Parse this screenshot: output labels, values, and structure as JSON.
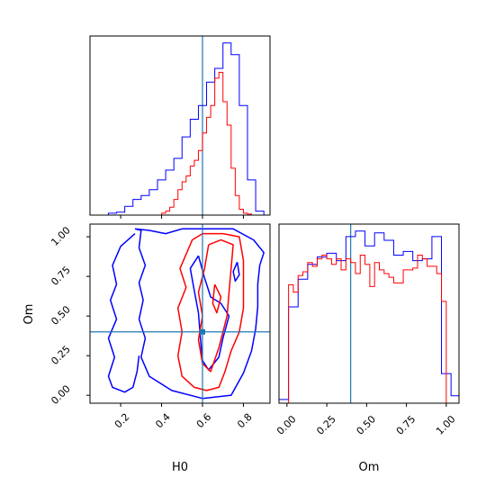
{
  "chart_data": [
    {
      "type": "histogram",
      "panel": "H0-marginal",
      "xlim": [
        0.05,
        0.93
      ],
      "truth_line": 0.6,
      "grid": false,
      "x_tick_values": [
        0.2,
        0.4,
        0.6,
        0.8
      ],
      "series": [
        {
          "color": "#0000ff",
          "bin_edges": [
            0.14,
            0.18,
            0.22,
            0.26,
            0.3,
            0.34,
            0.38,
            0.42,
            0.46,
            0.5,
            0.54,
            0.58,
            0.62,
            0.66,
            0.7,
            0.74,
            0.78,
            0.82,
            0.86,
            0.9
          ],
          "counts": [
            0.01,
            0.015,
            0.045,
            0.08,
            0.1,
            0.13,
            0.18,
            0.23,
            0.29,
            0.4,
            0.49,
            0.56,
            0.68,
            0.75,
            0.88,
            0.82,
            0.56,
            0.18,
            0.02
          ]
        },
        {
          "color": "#ff0000",
          "bin_edges": [
            0.4,
            0.42,
            0.44,
            0.46,
            0.48,
            0.5,
            0.52,
            0.54,
            0.56,
            0.58,
            0.6,
            0.62,
            0.64,
            0.66,
            0.68,
            0.7,
            0.72,
            0.74,
            0.76,
            0.78,
            0.8,
            0.82,
            0.84
          ],
          "counts": [
            0.01,
            0.02,
            0.04,
            0.08,
            0.13,
            0.17,
            0.2,
            0.25,
            0.28,
            0.33,
            0.42,
            0.5,
            0.56,
            0.7,
            0.73,
            0.58,
            0.46,
            0.24,
            0.1,
            0.03,
            0.01,
            0.005
          ]
        }
      ]
    },
    {
      "type": "contour",
      "panel": "H0-Om-joint",
      "xlabel": "H0",
      "ylabel": "Om",
      "xlim": [
        0.05,
        0.93
      ],
      "ylim": [
        -0.05,
        1.08
      ],
      "truth_x": 0.6,
      "truth_y": 0.4,
      "grid": false,
      "x_tick_labels": [
        "0.2",
        "0.4",
        "0.6",
        "0.8"
      ],
      "x_tick_values": [
        0.2,
        0.4,
        0.6,
        0.8
      ],
      "y_tick_labels": [
        "0.00",
        "0.25",
        "0.50",
        "0.75",
        "1.00"
      ],
      "y_tick_values": [
        0.0,
        0.25,
        0.5,
        0.75,
        1.0
      ],
      "series": [
        {
          "color": "#0000ff",
          "contours": [
            [
              [
                0.27,
                1.05
              ],
              [
                0.3,
                1.04
              ],
              [
                0.29,
                0.93
              ],
              [
                0.32,
                0.82
              ],
              [
                0.29,
                0.71
              ],
              [
                0.31,
                0.6
              ],
              [
                0.29,
                0.48
              ],
              [
                0.32,
                0.36
              ],
              [
                0.3,
                0.24
              ],
              [
                0.34,
                0.12
              ],
              [
                0.45,
                0.03
              ],
              [
                0.6,
                -0.02
              ],
              [
                0.74,
                0.0
              ],
              [
                0.8,
                0.14
              ],
              [
                0.84,
                0.28
              ],
              [
                0.86,
                0.42
              ],
              [
                0.87,
                0.56
              ],
              [
                0.87,
                0.7
              ],
              [
                0.88,
                0.82
              ],
              [
                0.9,
                0.9
              ],
              [
                0.85,
                0.98
              ],
              [
                0.75,
                1.05
              ],
              [
                0.62,
                1.05
              ],
              [
                0.5,
                1.05
              ],
              [
                0.42,
                1.02
              ],
              [
                0.34,
                1.04
              ],
              [
                0.27,
                1.05
              ]
            ],
            [
              [
                0.27,
                1.02
              ],
              [
                0.2,
                0.94
              ],
              [
                0.16,
                0.82
              ],
              [
                0.18,
                0.7
              ],
              [
                0.15,
                0.6
              ],
              [
                0.18,
                0.48
              ],
              [
                0.14,
                0.36
              ],
              [
                0.17,
                0.24
              ],
              [
                0.14,
                0.12
              ],
              [
                0.16,
                0.05
              ],
              [
                0.22,
                0.02
              ],
              [
                0.26,
                0.05
              ],
              [
                0.28,
                0.15
              ],
              [
                0.29,
                0.25
              ]
            ],
            [
              [
                0.58,
                0.88
              ],
              [
                0.61,
                0.74
              ],
              [
                0.64,
                0.62
              ],
              [
                0.69,
                0.58
              ],
              [
                0.73,
                0.5
              ],
              [
                0.7,
                0.36
              ],
              [
                0.68,
                0.24
              ],
              [
                0.63,
                0.16
              ],
              [
                0.6,
                0.22
              ],
              [
                0.59,
                0.36
              ],
              [
                0.58,
                0.52
              ],
              [
                0.56,
                0.66
              ],
              [
                0.54,
                0.8
              ],
              [
                0.58,
                0.88
              ]
            ],
            [
              [
                0.77,
                0.84
              ],
              [
                0.75,
                0.78
              ],
              [
                0.76,
                0.72
              ],
              [
                0.78,
                0.76
              ],
              [
                0.77,
                0.84
              ]
            ]
          ]
        },
        {
          "color": "#ff0000",
          "contours": [
            [
              [
                0.53,
                0.92
              ],
              [
                0.55,
                0.98
              ],
              [
                0.6,
                1.02
              ],
              [
                0.7,
                1.02
              ],
              [
                0.78,
                1.0
              ],
              [
                0.8,
                0.85
              ],
              [
                0.8,
                0.7
              ],
              [
                0.8,
                0.55
              ],
              [
                0.78,
                0.4
              ],
              [
                0.74,
                0.28
              ],
              [
                0.71,
                0.15
              ],
              [
                0.68,
                0.05
              ],
              [
                0.62,
                0.03
              ],
              [
                0.56,
                0.05
              ],
              [
                0.5,
                0.12
              ],
              [
                0.48,
                0.25
              ],
              [
                0.5,
                0.4
              ],
              [
                0.48,
                0.55
              ],
              [
                0.52,
                0.68
              ],
              [
                0.49,
                0.8
              ],
              [
                0.53,
                0.92
              ]
            ],
            [
              [
                0.63,
                0.95
              ],
              [
                0.69,
                0.98
              ],
              [
                0.75,
                0.95
              ],
              [
                0.74,
                0.8
              ],
              [
                0.73,
                0.65
              ],
              [
                0.72,
                0.5
              ],
              [
                0.68,
                0.3
              ],
              [
                0.64,
                0.15
              ],
              [
                0.6,
                0.2
              ],
              [
                0.58,
                0.35
              ],
              [
                0.6,
                0.5
              ],
              [
                0.58,
                0.65
              ],
              [
                0.61,
                0.8
              ],
              [
                0.63,
                0.95
              ]
            ],
            [
              [
                0.66,
                0.7
              ],
              [
                0.69,
                0.62
              ],
              [
                0.67,
                0.52
              ],
              [
                0.65,
                0.58
              ],
              [
                0.66,
                0.7
              ]
            ]
          ]
        }
      ]
    },
    {
      "type": "histogram",
      "panel": "Om-marginal",
      "xlabel": "Om",
      "xlim": [
        -0.05,
        1.08
      ],
      "truth_line": 0.4,
      "grid": false,
      "x_tick_labels": [
        "0.00",
        "0.25",
        "0.50",
        "0.75",
        "1.00"
      ],
      "x_tick_values": [
        0.0,
        0.25,
        0.5,
        0.75,
        1.0
      ],
      "series": [
        {
          "color": "#0000ff",
          "bin_edges": [
            -0.05,
            0.01,
            0.07,
            0.13,
            0.19,
            0.25,
            0.31,
            0.37,
            0.43,
            0.49,
            0.55,
            0.61,
            0.67,
            0.73,
            0.79,
            0.85,
            0.91,
            0.97,
            1.03,
            1.08
          ],
          "counts": [
            0.02,
            0.52,
            0.67,
            0.75,
            0.79,
            0.81,
            0.77,
            0.9,
            0.93,
            0.85,
            0.92,
            0.88,
            0.8,
            0.82,
            0.77,
            0.78,
            0.9,
            0.16,
            0.04
          ]
        },
        {
          "color": "#ff0000",
          "bin_edges": [
            0.01,
            0.04,
            0.07,
            0.1,
            0.13,
            0.16,
            0.19,
            0.22,
            0.25,
            0.28,
            0.31,
            0.34,
            0.37,
            0.4,
            0.43,
            0.46,
            0.49,
            0.52,
            0.55,
            0.58,
            0.61,
            0.64,
            0.67,
            0.7,
            0.73,
            0.76,
            0.79,
            0.82,
            0.85,
            0.88,
            0.91,
            0.94,
            0.97,
            1.0
          ],
          "counts": [
            0.64,
            0.6,
            0.69,
            0.71,
            0.76,
            0.74,
            0.78,
            0.8,
            0.78,
            0.75,
            0.78,
            0.72,
            0.78,
            0.76,
            0.7,
            0.8,
            0.75,
            0.63,
            0.76,
            0.72,
            0.7,
            0.68,
            0.65,
            0.65,
            0.72,
            0.72,
            0.73,
            0.8,
            0.78,
            0.74,
            0.74,
            0.7,
            0.55
          ]
        }
      ]
    }
  ]
}
